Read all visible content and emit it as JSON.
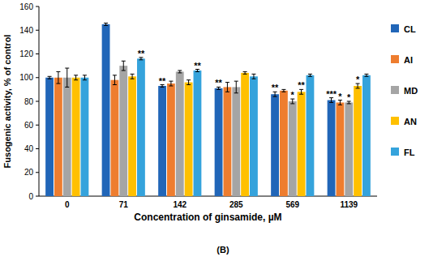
{
  "chart_data": {
    "type": "bar",
    "x_label": "Concentration of ginsamide, µM",
    "y_label": "Fusogenic activity, % of control",
    "caption": "(B)",
    "categories": [
      "0",
      "71",
      "142",
      "285",
      "569",
      "1139"
    ],
    "series": [
      {
        "name": "CL",
        "color": "#2166b8",
        "values": [
          100,
          145,
          93,
          91,
          86,
          81
        ],
        "errors": [
          1,
          1,
          1,
          1,
          2,
          2
        ],
        "annotations": [
          null,
          null,
          "**",
          "**",
          "**",
          "***"
        ]
      },
      {
        "name": "AI",
        "color": "#ee7d2f",
        "values": [
          100,
          98,
          95,
          92,
          89,
          79
        ],
        "errors": [
          5,
          4,
          2,
          4,
          1,
          2
        ],
        "annotations": [
          null,
          null,
          null,
          null,
          null,
          "*"
        ]
      },
      {
        "name": "MD",
        "color": "#a5a5a5",
        "values": [
          100,
          110,
          105,
          92,
          80,
          79
        ],
        "errors": [
          8,
          4,
          1,
          5,
          2,
          1
        ],
        "annotations": [
          null,
          null,
          null,
          null,
          "*",
          "*"
        ]
      },
      {
        "name": "AN",
        "color": "#ffc000",
        "values": [
          100,
          101,
          96,
          104,
          88,
          93
        ],
        "errors": [
          2,
          2,
          2,
          1,
          2,
          2
        ],
        "annotations": [
          null,
          null,
          null,
          null,
          "**",
          "*"
        ]
      },
      {
        "name": "FL",
        "color": "#35a3dc",
        "values": [
          100,
          116,
          106,
          101,
          102,
          102
        ],
        "errors": [
          2,
          1,
          1,
          2,
          1,
          1
        ],
        "annotations": [
          null,
          "**",
          "**",
          null,
          null,
          null
        ]
      }
    ],
    "ylim": [
      0,
      160
    ],
    "yticks": [
      0,
      20,
      40,
      60,
      80,
      100,
      120,
      140,
      160
    ],
    "grid": false,
    "legend": "right"
  }
}
